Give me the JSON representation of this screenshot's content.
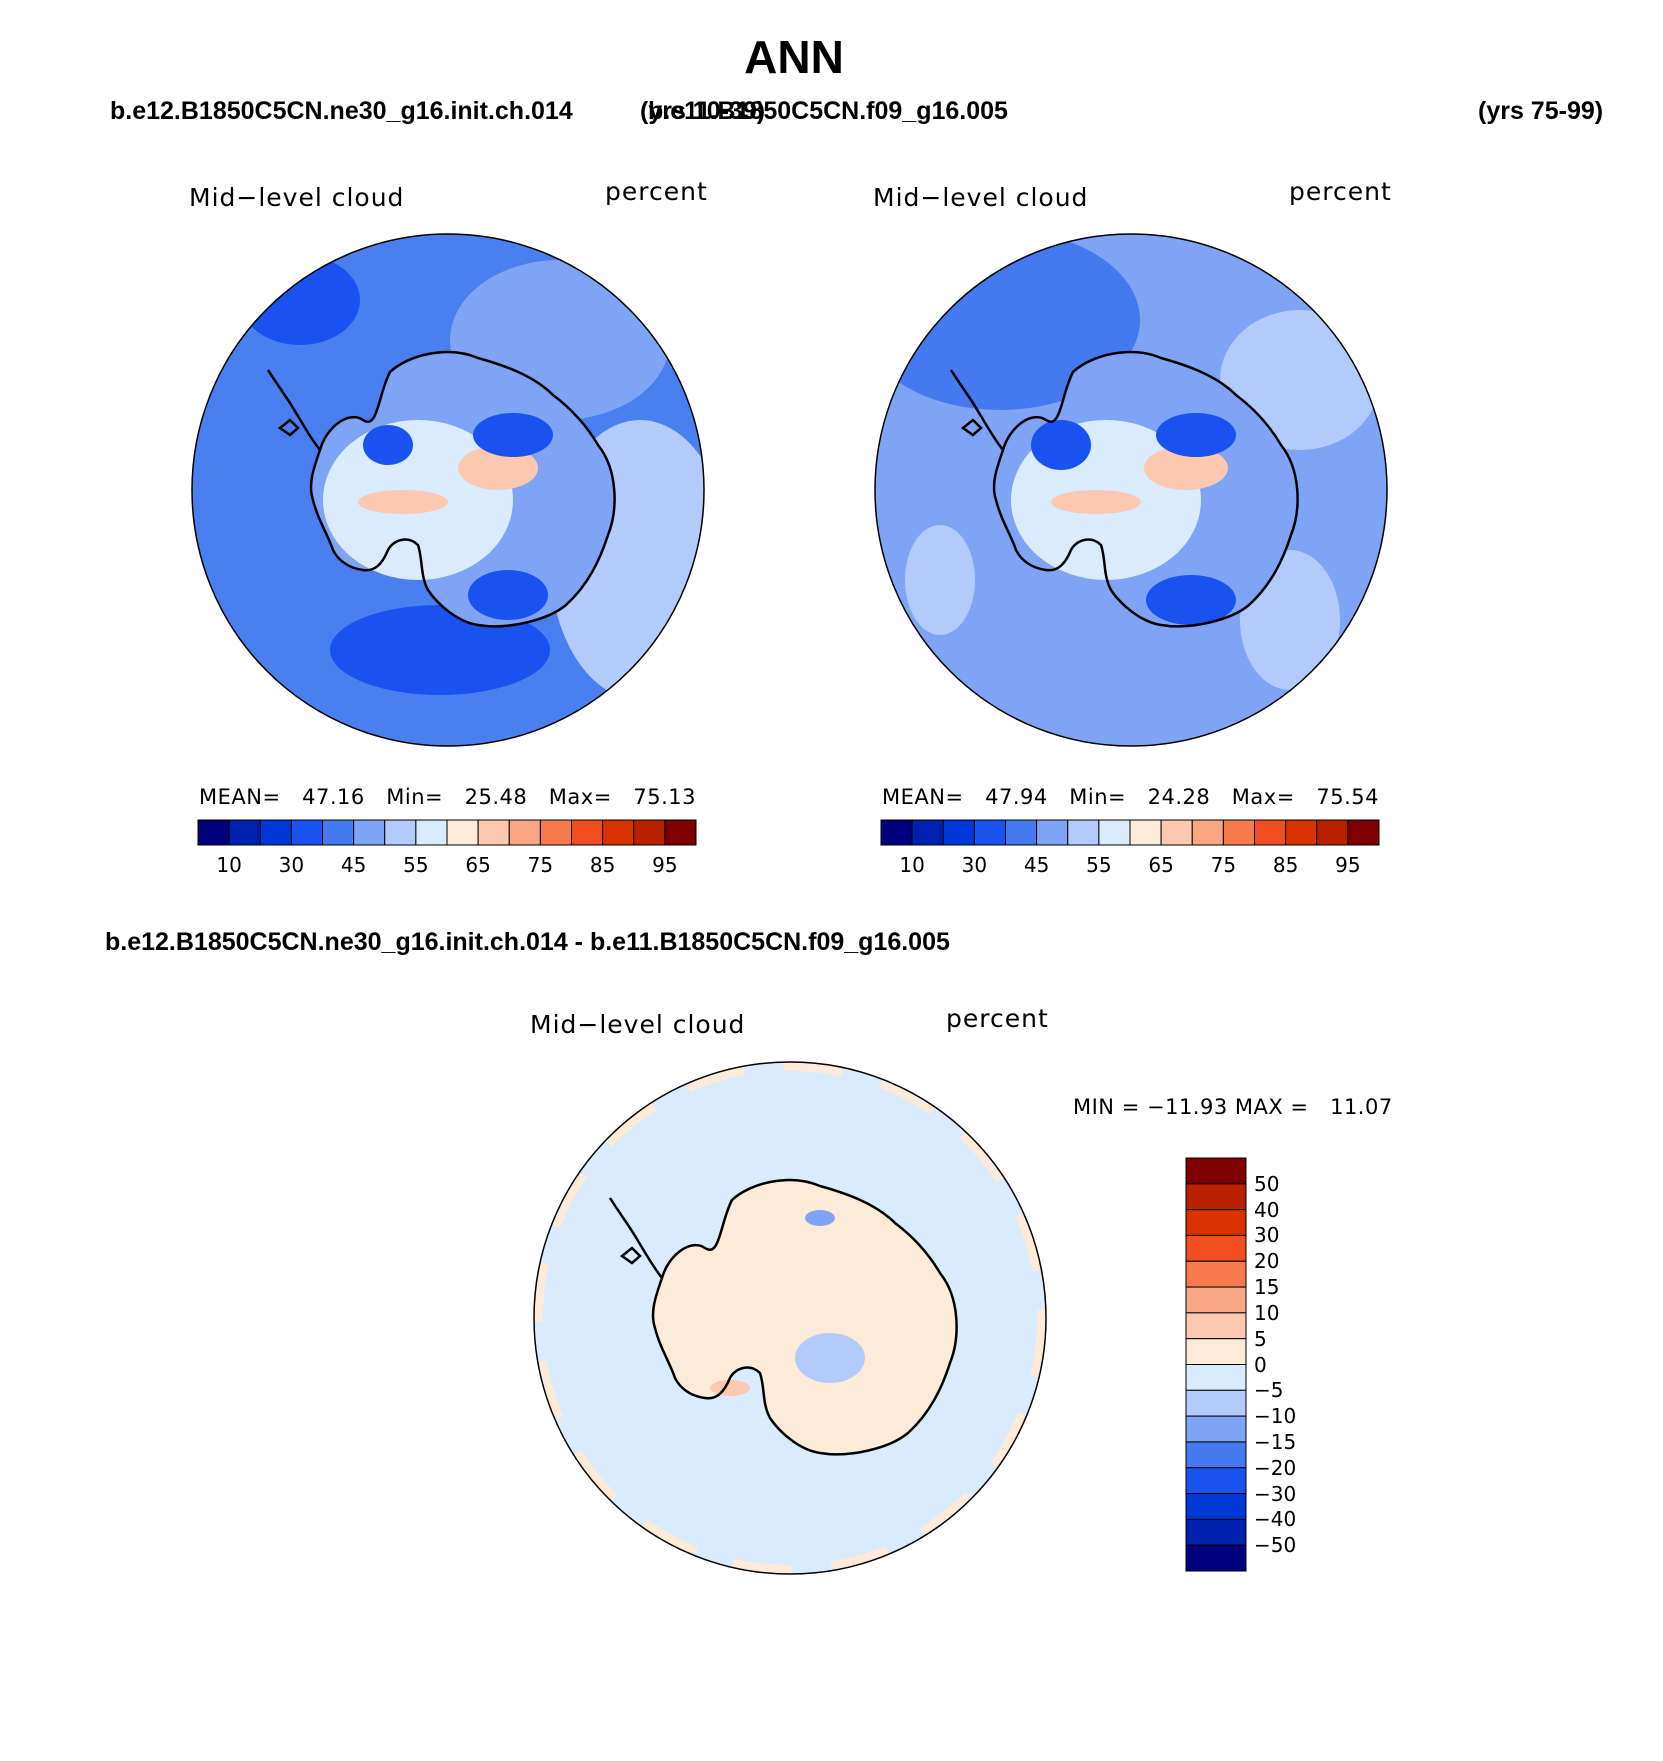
{
  "title": "ANN",
  "header": {
    "left_case": "b.e12.B1850C5CN.ne30_g16.init.ch.014",
    "left_years": "(yrs 10-39)",
    "right_case": "b.e11.B1850C5CN.f09_g16.005",
    "right_years": "(yrs 75-99)"
  },
  "difference_title": "b.e12.B1850C5CN.ne30_g16.init.ch.014 - b.e11.B1850C5CN.f09_g16.005",
  "panels": [
    {
      "variable": "Mid−level cloud",
      "units": "percent",
      "stats": {
        "mean_label": "MEAN=",
        "mean": "47.16",
        "min_label": "Min=",
        "min": "25.48",
        "max_label": "Max=",
        "max": "75.13"
      }
    },
    {
      "variable": "Mid−level cloud",
      "units": "percent",
      "stats": {
        "mean_label": "MEAN=",
        "mean": "47.94",
        "min_label": "Min=",
        "min": "24.28",
        "max_label": "Max=",
        "max": "75.54"
      }
    },
    {
      "variable": "Mid−level cloud",
      "units": "percent",
      "stats": {
        "min_label": "MIN =",
        "min": "−11.93",
        "max_label": "MAX =",
        "max": "11.07"
      }
    }
  ],
  "colorbar_abs": {
    "labels": [
      "10",
      "30",
      "45",
      "55",
      "65",
      "75",
      "85",
      "95"
    ],
    "colors": [
      "#00007e",
      "#0020b0",
      "#0038d8",
      "#1a52f0",
      "#4479f0",
      "#80a4f5",
      "#b3cbfa",
      "#d9ebfd",
      "#fdebd9",
      "#fcc9b0",
      "#f9a685",
      "#f77a4d",
      "#f04d20",
      "#d83200",
      "#b82000",
      "#7e0000"
    ]
  },
  "colorbar_diff": {
    "labels": [
      "50",
      "40",
      "30",
      "20",
      "15",
      "10",
      "5",
      "0",
      "−5",
      "−10",
      "−15",
      "−20",
      "−30",
      "−40",
      "−50"
    ],
    "colors": [
      "#7e0000",
      "#b82000",
      "#d83200",
      "#f04d20",
      "#f77a4d",
      "#f9a685",
      "#fcc9b0",
      "#fdebd9",
      "#d9ebfd",
      "#b3cbfa",
      "#80a4f5",
      "#4479f0",
      "#1a52f0",
      "#0038d8",
      "#0020b0",
      "#00007e"
    ]
  }
}
